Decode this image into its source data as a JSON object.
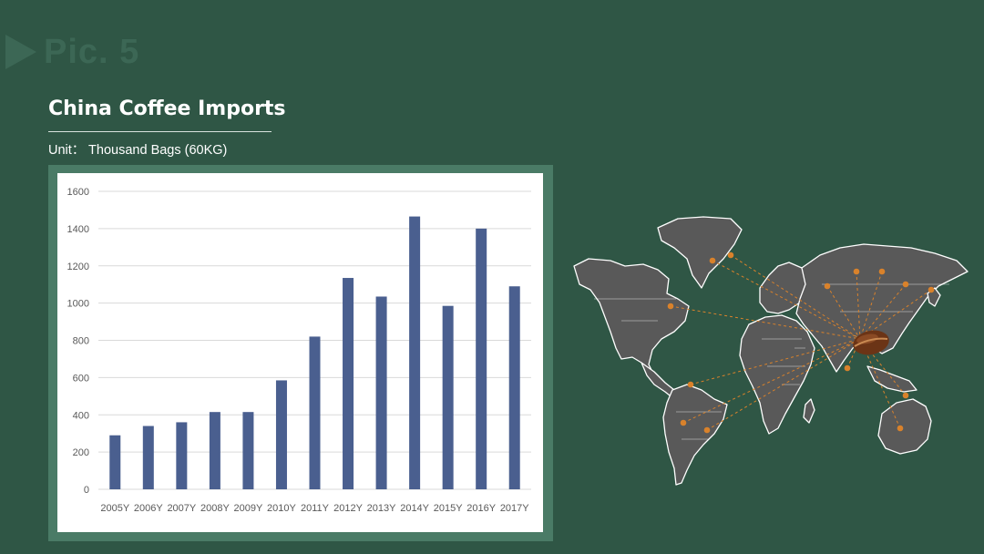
{
  "slide": {
    "pic_label": "Pic. 5",
    "title": "China Coffee Imports",
    "unit": "Unit： Thousand Bags (60KG)"
  },
  "colors": {
    "background": "#2f5645",
    "bar": "#4a5f8f",
    "map_land": "#595959",
    "map_marker": "#d9822b",
    "coffee_bean": "#6b3416"
  },
  "icons": [
    "play-triangle-icon",
    "world-map-icon",
    "coffee-bean-icon"
  ],
  "chart_data": {
    "type": "bar",
    "categories": [
      "2005Y",
      "2006Y",
      "2007Y",
      "2008Y",
      "2009Y",
      "2010Y",
      "2011Y",
      "2012Y",
      "2013Y",
      "2014Y",
      "2015Y",
      "2016Y",
      "2017Y"
    ],
    "values": [
      290,
      340,
      360,
      415,
      415,
      585,
      820,
      1135,
      1035,
      1465,
      985,
      1400,
      1090
    ],
    "y_ticks": [
      0,
      200,
      400,
      600,
      800,
      1000,
      1200,
      1400,
      1600
    ],
    "ylim": [
      0,
      1600
    ],
    "grid": true,
    "legend": "none"
  }
}
